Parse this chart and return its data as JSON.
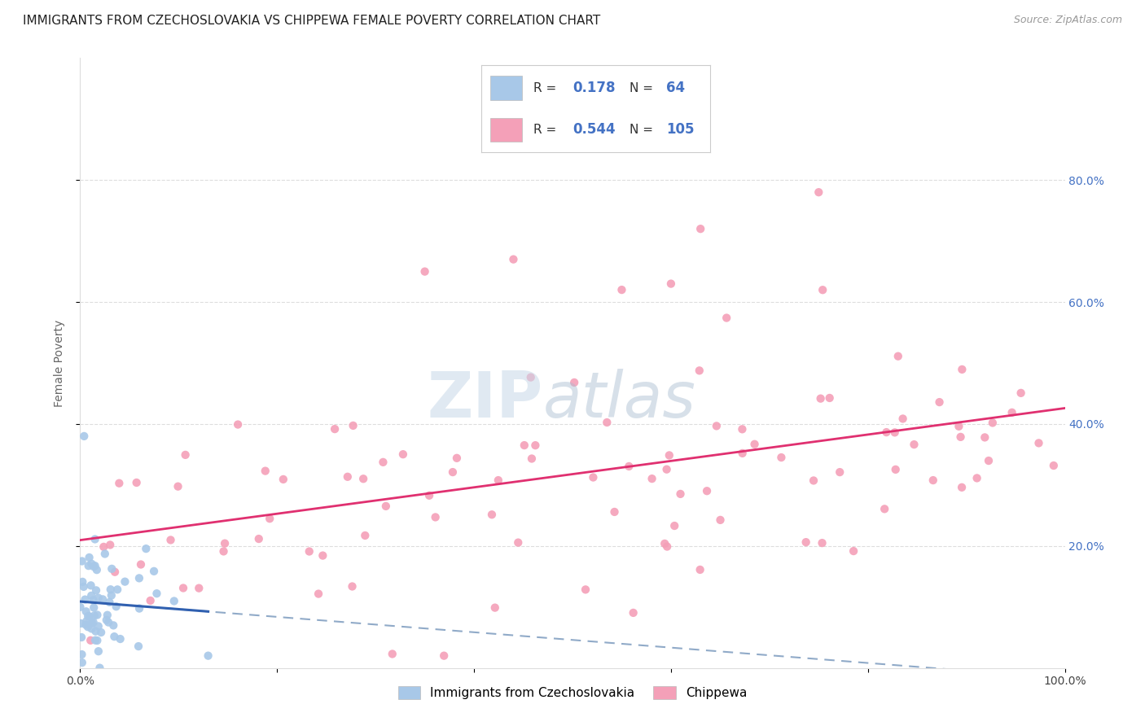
{
  "title": "IMMIGRANTS FROM CZECHOSLOVAKIA VS CHIPPEWA FEMALE POVERTY CORRELATION CHART",
  "source": "Source: ZipAtlas.com",
  "ylabel": "Female Poverty",
  "xlabel": "",
  "xlim": [
    0,
    1.0
  ],
  "ylim": [
    0,
    1.0
  ],
  "series1_label": "Immigrants from Czechoslovakia",
  "series2_label": "Chippewa",
  "series1_R": 0.178,
  "series1_N": 64,
  "series2_R": 0.544,
  "series2_N": 105,
  "series1_color": "#a8c8e8",
  "series2_color": "#f4a0b8",
  "series1_line_color": "#3060b0",
  "series2_line_color": "#e03070",
  "trend_dash_color": "#90aac8",
  "watermark_zip_color": "#c8d8e8",
  "watermark_atlas_color": "#a8bcd0",
  "background_color": "#ffffff",
  "grid_color": "#dddddd",
  "title_fontsize": 11,
  "tick_fontsize": 10,
  "right_tick_color": "#4472c4",
  "legend_text_color": "#4472c4"
}
